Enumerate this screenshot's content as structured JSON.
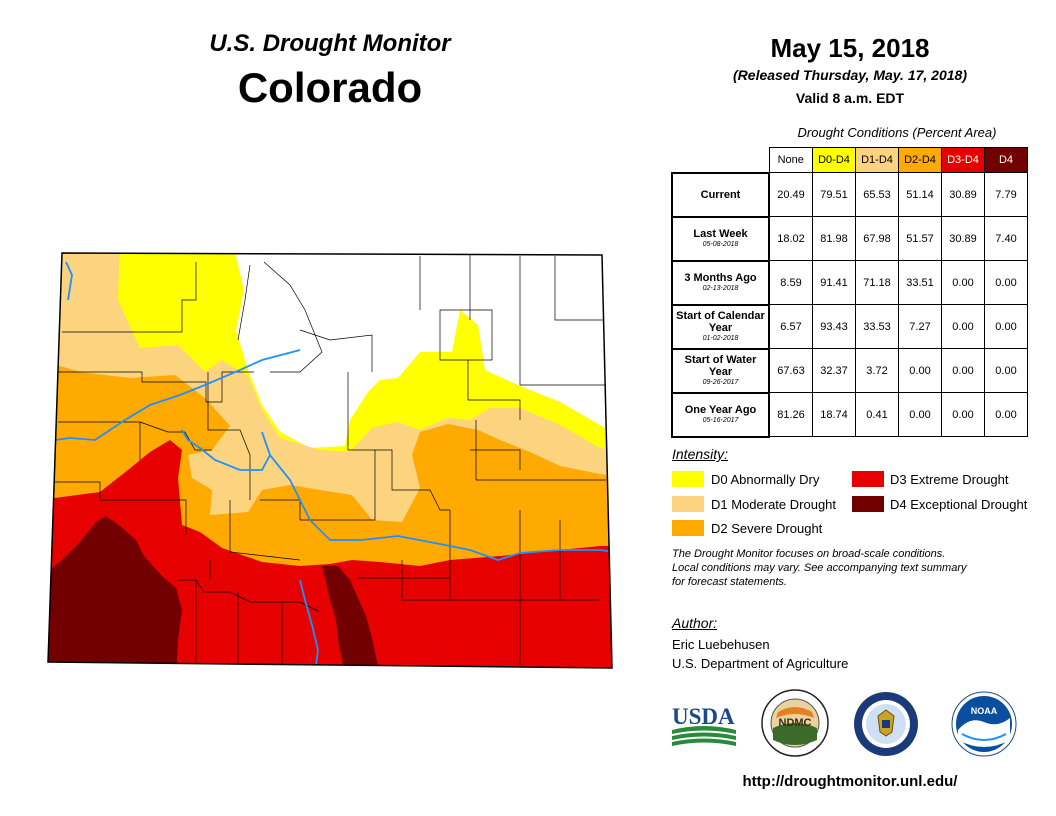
{
  "header": {
    "monitor_title": "U.S. Drought Monitor",
    "state": "Colorado"
  },
  "report": {
    "date": "May 15, 2018",
    "released": "(Released Thursday, May. 17, 2018)",
    "valid": "Valid 8 a.m. EDT"
  },
  "table": {
    "title": "Drought Conditions (Percent Area)",
    "columns": [
      "None",
      "D0-D4",
      "D1-D4",
      "D2-D4",
      "D3-D4",
      "D4"
    ],
    "column_colors": [
      "#ffffff",
      "#ffff00",
      "#fcd37f",
      "#ffaa00",
      "#e60000",
      "#730000"
    ],
    "rows": [
      {
        "label": "Current",
        "date": "",
        "values": [
          "20.49",
          "79.51",
          "65.53",
          "51.14",
          "30.89",
          "7.79"
        ]
      },
      {
        "label": "Last Week",
        "date": "05-08-2018",
        "values": [
          "18.02",
          "81.98",
          "67.98",
          "51.57",
          "30.89",
          "7.40"
        ]
      },
      {
        "label": "3 Months Ago",
        "date": "02-13-2018",
        "values": [
          "8.59",
          "91.41",
          "71.18",
          "33.51",
          "0.00",
          "0.00"
        ]
      },
      {
        "label": "Start of Calendar Year",
        "date": "01-02-2018",
        "values": [
          "6.57",
          "93.43",
          "33.53",
          "7.27",
          "0.00",
          "0.00"
        ]
      },
      {
        "label": "Start of Water Year",
        "date": "09-26-2017",
        "values": [
          "67.63",
          "32.37",
          "3.72",
          "0.00",
          "0.00",
          "0.00"
        ]
      },
      {
        "label": "One Year Ago",
        "date": "05-16-2017",
        "values": [
          "81.26",
          "18.74",
          "0.41",
          "0.00",
          "0.00",
          "0.00"
        ]
      }
    ]
  },
  "legend": {
    "title": "Intensity:",
    "items": [
      {
        "label": "D0 Abnormally Dry",
        "color": "#ffff00"
      },
      {
        "label": "D1 Moderate Drought",
        "color": "#fcd37f"
      },
      {
        "label": "D2 Severe Drought",
        "color": "#ffaa00"
      },
      {
        "label": "D3 Extreme Drought",
        "color": "#e60000"
      },
      {
        "label": "D4 Exceptional Drought",
        "color": "#730000"
      }
    ]
  },
  "note": {
    "line1": "The Drought Monitor focuses on broad-scale conditions.",
    "line2": "Local conditions may vary. See accompanying text summary",
    "line3": "for forecast statements."
  },
  "author": {
    "title": "Author:",
    "name": "Eric Luebehusen",
    "org": "U.S. Department of Agriculture"
  },
  "logos": {
    "usda": "USDA",
    "ndmc": "NDMC",
    "noaa": "NOAA"
  },
  "url": "http://droughtmonitor.unl.edu/"
}
